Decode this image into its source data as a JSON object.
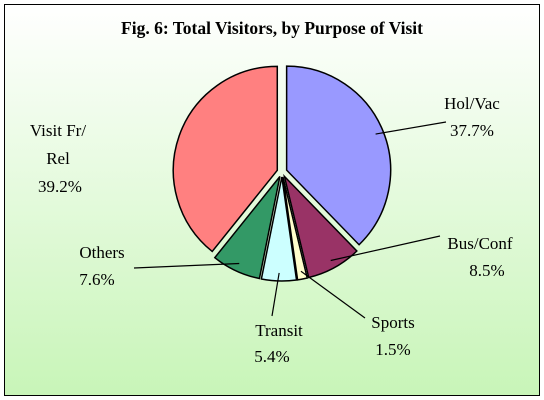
{
  "chart_data": {
    "type": "pie",
    "title": "Fig. 6: Total Visitors, by Purpose of Visit",
    "categories": [
      "Hol/Vac",
      "Bus/Conf",
      "Sports",
      "Transit",
      "Others",
      "Visit Fr/\nRel"
    ],
    "values": [
      37.7,
      8.5,
      1.5,
      5.4,
      7.6,
      39.2
    ],
    "value_labels": [
      "37.7%",
      "8.5%",
      "1.5%",
      "5.4%",
      "7.6%",
      "39.2%"
    ],
    "colors": [
      "#9999ff",
      "#993366",
      "#ffffcc",
      "#ccffff",
      "#339966",
      "#ff8080"
    ]
  }
}
